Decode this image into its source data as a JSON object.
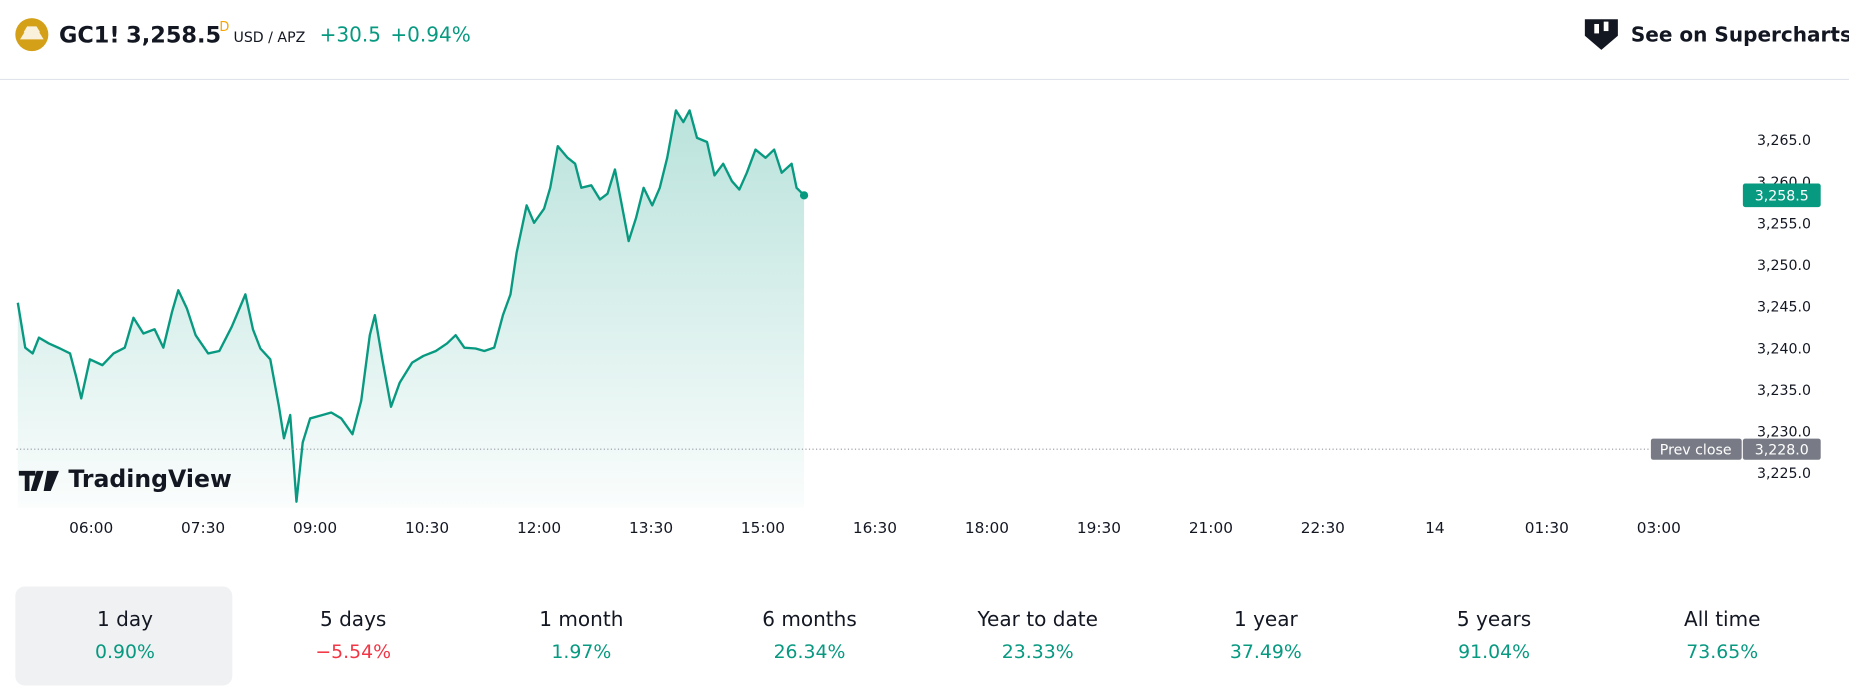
{
  "header": {
    "symbol": "GC1!",
    "price": "3,258.5",
    "price_flag": "D",
    "currency": "USD / APZ",
    "change": "+30.5",
    "change_pct": "+0.94%",
    "link": "See on Supercharts"
  },
  "chart_data": {
    "type": "line",
    "color": "#089981",
    "watermark": "TradingView",
    "x": [
      301,
      307,
      313,
      318,
      326,
      335,
      343,
      348,
      352,
      359,
      369,
      378,
      387,
      394,
      402,
      411,
      418,
      425,
      430,
      437,
      444,
      454,
      463,
      473,
      477,
      484,
      490,
      496,
      504,
      511,
      515,
      520,
      525,
      530,
      536,
      546,
      553,
      561,
      570,
      577,
      584,
      588,
      594,
      601,
      608,
      618,
      627,
      637,
      646,
      653,
      660,
      669,
      676,
      684,
      691,
      697,
      702,
      710,
      716,
      724,
      729,
      735,
      743,
      749,
      754,
      762,
      769,
      775,
      781,
      786,
      792,
      798,
      804,
      811,
      817,
      823,
      830,
      836,
      841,
      847,
      855,
      861,
      868,
      875,
      881,
      887,
      894,
      902,
      909,
      915,
      923,
      927,
      933
    ],
    "values": [
      3245.6,
      3240.2,
      3239.5,
      3241.4,
      3240.7,
      3240.1,
      3239.5,
      3236.7,
      3234.1,
      3238.8,
      3238.1,
      3239.5,
      3240.2,
      3243.8,
      3241.9,
      3242.4,
      3240.2,
      3244.5,
      3247.1,
      3244.9,
      3241.7,
      3239.5,
      3239.8,
      3242.7,
      3244.1,
      3246.6,
      3242.4,
      3240.1,
      3238.8,
      3233.1,
      3229.3,
      3232.1,
      3221.7,
      3228.8,
      3231.7,
      3232.1,
      3232.4,
      3231.7,
      3229.8,
      3233.8,
      3241.7,
      3244.1,
      3238.8,
      3233.1,
      3236.0,
      3238.4,
      3239.2,
      3239.8,
      3240.7,
      3241.7,
      3240.2,
      3240.1,
      3239.8,
      3240.2,
      3244.1,
      3246.6,
      3251.6,
      3257.3,
      3255.2,
      3256.9,
      3259.4,
      3264.4,
      3263.0,
      3262.3,
      3259.4,
      3259.7,
      3258.0,
      3258.7,
      3261.6,
      3257.7,
      3253.0,
      3255.8,
      3259.4,
      3257.3,
      3259.4,
      3263.0,
      3268.7,
      3267.3,
      3268.7,
      3265.4,
      3264.9,
      3260.9,
      3262.3,
      3260.2,
      3259.2,
      3261.2,
      3264.0,
      3263.0,
      3264.0,
      3261.2,
      3262.3,
      3259.4,
      3258.5
    ],
    "last_value_label": "3,258.5",
    "prev_close": {
      "label": "Prev close",
      "value": 3228.0,
      "value_label": "3,228.0"
    },
    "xlim": [
      300,
      1680
    ],
    "xticks": [
      {
        "value": 360,
        "label": "06:00"
      },
      {
        "value": 450,
        "label": "07:30"
      },
      {
        "value": 540,
        "label": "09:00"
      },
      {
        "value": 630,
        "label": "10:30"
      },
      {
        "value": 720,
        "label": "12:00"
      },
      {
        "value": 810,
        "label": "13:30"
      },
      {
        "value": 900,
        "label": "15:00"
      },
      {
        "value": 990,
        "label": "16:30"
      },
      {
        "value": 1080,
        "label": "18:00"
      },
      {
        "value": 1170,
        "label": "19:30"
      },
      {
        "value": 1260,
        "label": "21:00"
      },
      {
        "value": 1350,
        "label": "22:30"
      },
      {
        "value": 1440,
        "label": "14"
      },
      {
        "value": 1530,
        "label": "01:30"
      },
      {
        "value": 1620,
        "label": "03:00"
      }
    ],
    "ylim": [
      3221,
      3272
    ],
    "yticks": [
      {
        "value": 3225,
        "label": "3,225.0"
      },
      {
        "value": 3230,
        "label": "3,230.0"
      },
      {
        "value": 3235,
        "label": "3,235.0"
      },
      {
        "value": 3240,
        "label": "3,240.0"
      },
      {
        "value": 3245,
        "label": "3,245.0"
      },
      {
        "value": 3250,
        "label": "3,250.0"
      },
      {
        "value": 3255,
        "label": "3,255.0"
      },
      {
        "value": 3260,
        "label": "3,260.0"
      },
      {
        "value": 3265,
        "label": "3,265.0"
      }
    ]
  },
  "periods": [
    {
      "label": "1 day",
      "value": "0.90%",
      "color": "#089981"
    },
    {
      "label": "5 days",
      "value": "−5.54%",
      "color": "#f23645"
    },
    {
      "label": "1 month",
      "value": "1.97%",
      "color": "#089981"
    },
    {
      "label": "6 months",
      "value": "26.34%",
      "color": "#089981"
    },
    {
      "label": "Year to date",
      "value": "23.33%",
      "color": "#089981"
    },
    {
      "label": "1 year",
      "value": "37.49%",
      "color": "#089981"
    },
    {
      "label": "5 years",
      "value": "91.04%",
      "color": "#089981"
    },
    {
      "label": "All time",
      "value": "73.65%",
      "color": "#089981"
    }
  ]
}
